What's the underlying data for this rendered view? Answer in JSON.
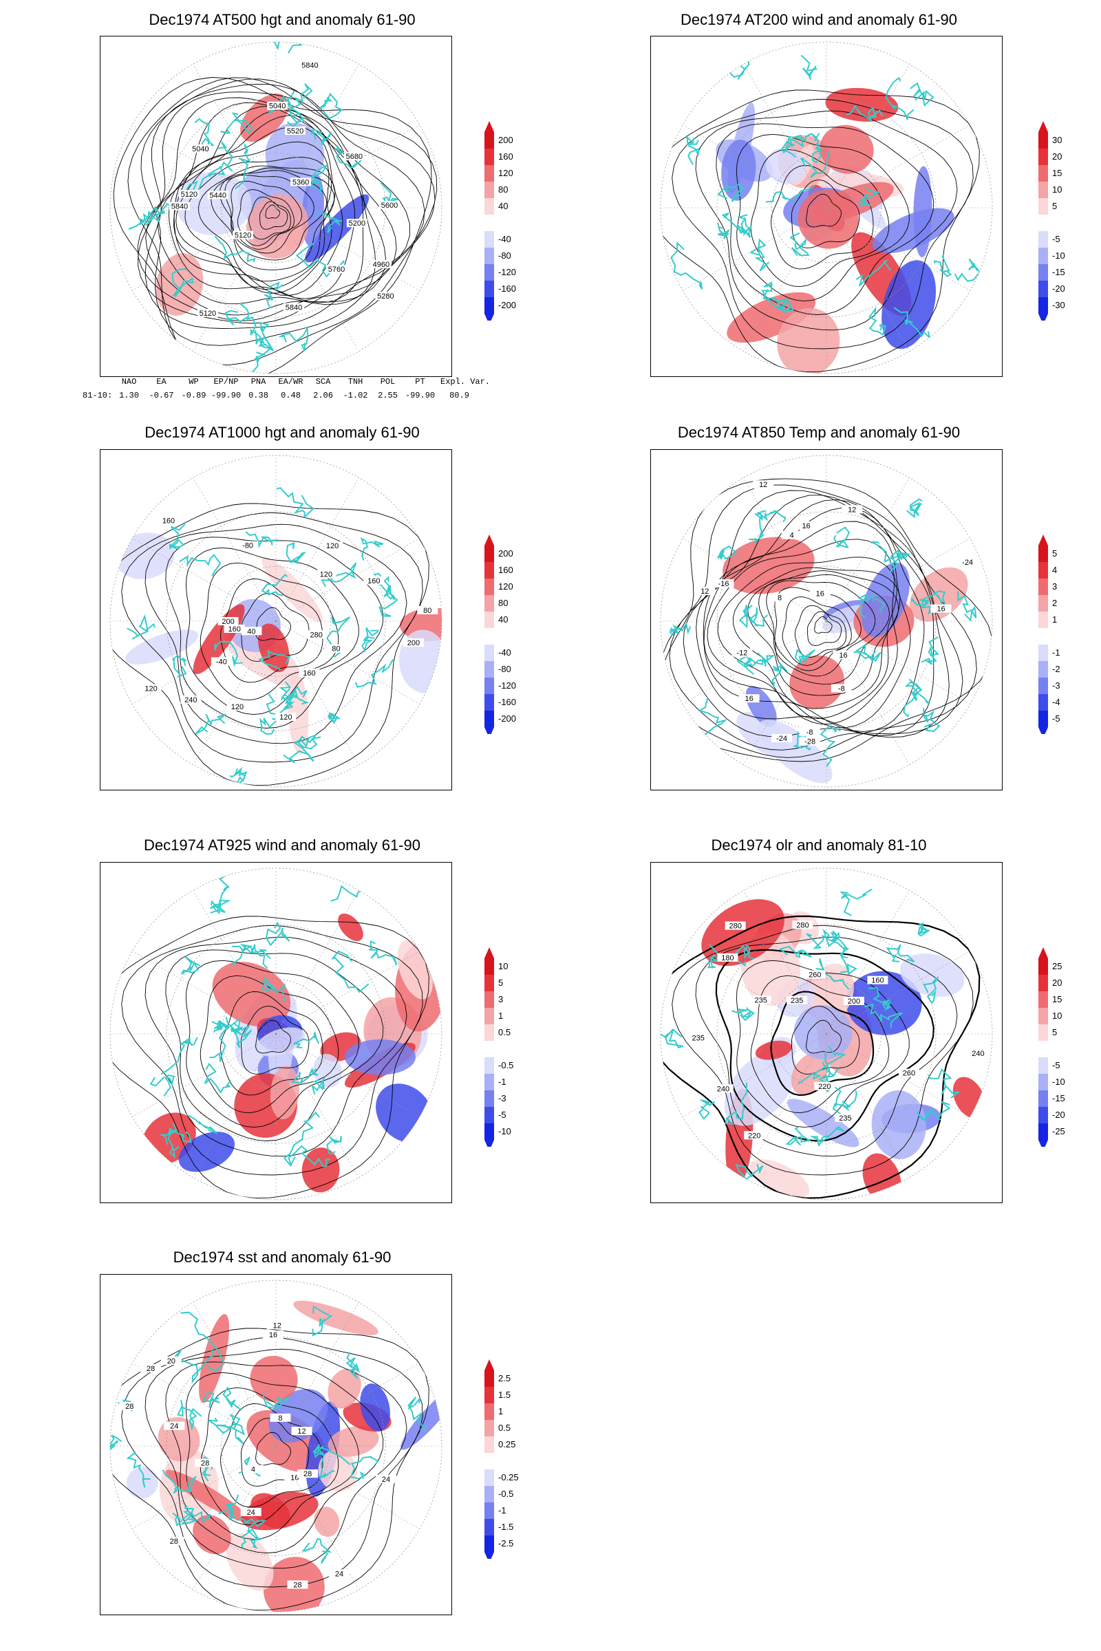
{
  "panels": [
    {
      "id": "at500",
      "title": "Dec1974 AT500 hgt and anomaly 61-90",
      "colorbar": [
        "200",
        "160",
        "120",
        "80",
        "40",
        "-40",
        "-80",
        "-120",
        "-160",
        "-200"
      ],
      "contour_labels": [
        "5840",
        "5120",
        "5120",
        "5040",
        "4960",
        "5040",
        "5120",
        "5200",
        "5280",
        "5360",
        "5440",
        "5520",
        "5600",
        "5680",
        "5760",
        "5840",
        "5840"
      ]
    },
    {
      "id": "at200",
      "title": "Dec1974 AT200 wind and anomaly 61-90",
      "colorbar": [
        "30",
        "20",
        "15",
        "10",
        "5",
        "-5",
        "-10",
        "-15",
        "-20",
        "-30"
      ],
      "contour_labels": []
    },
    {
      "id": "at1000",
      "title": "Dec1974 AT1000 hgt and anomaly 61-90",
      "colorbar": [
        "200",
        "160",
        "120",
        "80",
        "40",
        "-40",
        "-80",
        "-120",
        "-160",
        "-200"
      ],
      "contour_labels": [
        "80",
        "120",
        "160",
        "200",
        "-40",
        "40",
        "160",
        "120",
        "-80",
        "120",
        "200",
        "280",
        "240",
        "160",
        "120",
        "80",
        "160",
        "120"
      ]
    },
    {
      "id": "at850",
      "title": "Dec1974 AT850 Temp and anomaly 61-90",
      "colorbar": [
        "5",
        "4",
        "3",
        "2",
        "1",
        "-1",
        "-2",
        "-3",
        "-4",
        "-5"
      ],
      "contour_labels": [
        "16",
        "12",
        "-8",
        "-12",
        "-16",
        "-28",
        "-24",
        "-24",
        "16",
        "12",
        "-8",
        "4",
        "8",
        "12",
        "16",
        "16",
        "16"
      ]
    },
    {
      "id": "at925",
      "title": "Dec1974 AT925 wind and anomaly 61-90",
      "colorbar": [
        "10",
        "5",
        "3",
        "1",
        "0.5",
        "-0.5",
        "-1",
        "-3",
        "-5",
        "-10"
      ],
      "contour_labels": []
    },
    {
      "id": "olr",
      "title": "Dec1974 olr and anomaly 81-10",
      "colorbar": [
        "25",
        "20",
        "15",
        "10",
        "5",
        "-5",
        "-10",
        "-15",
        "-20",
        "-25"
      ],
      "contour_labels": [
        "240",
        "235",
        "220",
        "260",
        "280",
        "200",
        "180",
        "160",
        "235",
        "220",
        "240",
        "260",
        "280",
        "235",
        "235"
      ]
    },
    {
      "id": "sst",
      "title": "Dec1974 sst and anomaly 61-90",
      "colorbar": [
        "2.5",
        "1.5",
        "1",
        "0.5",
        "0.25",
        "-0.25",
        "-0.5",
        "-1",
        "-1.5",
        "-2.5"
      ],
      "contour_labels": [
        "28",
        "24",
        "24",
        "20",
        "16",
        "12",
        "8",
        "4",
        "24",
        "28",
        "28",
        "28",
        "12",
        "16",
        "24",
        "28",
        "28"
      ]
    }
  ],
  "index_table": {
    "headers": [
      "NAO",
      "EA",
      "WP",
      "EP/NP",
      "PNA",
      "EA/WR",
      "SCA",
      "TNH",
      "POL",
      "PT",
      "Expl. Var."
    ],
    "row_label": "81-10:",
    "values": [
      "1.30",
      "-0.67",
      "-0.89",
      "-99.90",
      "0.38",
      "0.48",
      "2.06",
      "-1.02",
      "2.55",
      "-99.90",
      "80.9"
    ]
  },
  "colors": {
    "coast": "#33cccc",
    "contour": "#000000",
    "positive": "#e8131b",
    "negative": "#1c2ef0"
  }
}
